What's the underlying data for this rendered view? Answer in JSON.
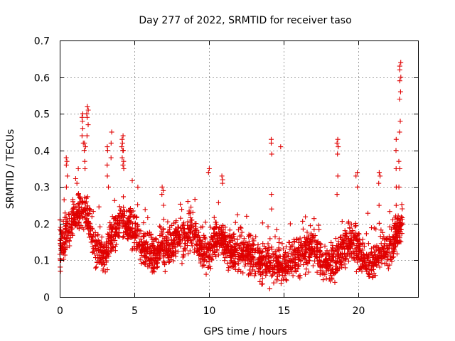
{
  "chart_data": {
    "type": "scatter",
    "title": "Day 277 of 2022, SRMTID for receiver taso",
    "xlabel": "GPS time / hours",
    "ylabel": "SRMTID / TECUs",
    "xlim": [
      0,
      24
    ],
    "ylim": [
      0,
      0.7
    ],
    "x_ticks": [
      0,
      5,
      10,
      15,
      20
    ],
    "x_tick_labels": [
      "0",
      "5",
      "10",
      "15",
      "20"
    ],
    "y_ticks": [
      0,
      0.1,
      0.2,
      0.3,
      0.4,
      0.5,
      0.6,
      0.7
    ],
    "y_tick_labels": [
      "0",
      "0.1",
      "0.2",
      "0.3",
      "0.4",
      "0.5",
      "0.6",
      "0.7"
    ],
    "grid": true,
    "marker": "+",
    "marker_color": "#e00000",
    "baseline": [
      [
        0.0,
        0.13
      ],
      [
        0.5,
        0.18
      ],
      [
        1.0,
        0.22
      ],
      [
        1.5,
        0.24
      ],
      [
        2.0,
        0.2
      ],
      [
        2.5,
        0.13
      ],
      [
        3.0,
        0.11
      ],
      [
        3.5,
        0.17
      ],
      [
        4.0,
        0.2
      ],
      [
        4.5,
        0.2
      ],
      [
        5.0,
        0.18
      ],
      [
        5.5,
        0.14
      ],
      [
        6.0,
        0.12
      ],
      [
        6.5,
        0.12
      ],
      [
        7.0,
        0.13
      ],
      [
        7.5,
        0.14
      ],
      [
        8.0,
        0.16
      ],
      [
        8.5,
        0.17
      ],
      [
        9.0,
        0.18
      ],
      [
        9.5,
        0.13
      ],
      [
        10.0,
        0.12
      ],
      [
        10.5,
        0.17
      ],
      [
        11.0,
        0.15
      ],
      [
        11.5,
        0.12
      ],
      [
        12.0,
        0.12
      ],
      [
        12.5,
        0.12
      ],
      [
        13.0,
        0.11
      ],
      [
        13.5,
        0.1
      ],
      [
        14.0,
        0.1
      ],
      [
        14.5,
        0.09
      ],
      [
        15.0,
        0.09
      ],
      [
        15.5,
        0.1
      ],
      [
        16.0,
        0.11
      ],
      [
        16.5,
        0.13
      ],
      [
        17.0,
        0.14
      ],
      [
        17.5,
        0.1
      ],
      [
        18.0,
        0.09
      ],
      [
        18.5,
        0.1
      ],
      [
        19.0,
        0.13
      ],
      [
        19.5,
        0.15
      ],
      [
        20.0,
        0.13
      ],
      [
        20.5,
        0.1
      ],
      [
        21.0,
        0.09
      ],
      [
        21.5,
        0.12
      ],
      [
        22.0,
        0.13
      ],
      [
        22.5,
        0.16
      ],
      [
        22.9,
        0.2
      ]
    ],
    "peaks": [
      {
        "x": 0.05,
        "values": [
          0.07,
          0.08,
          0.1,
          0.16,
          0.19,
          0.21
        ]
      },
      {
        "x": 0.5,
        "values": [
          0.3,
          0.33,
          0.36,
          0.37,
          0.38
        ]
      },
      {
        "x": 1.2,
        "values": [
          0.28,
          0.31,
          0.35
        ]
      },
      {
        "x": 1.55,
        "values": [
          0.42,
          0.44,
          0.46,
          0.48,
          0.49,
          0.5
        ]
      },
      {
        "x": 1.7,
        "values": [
          0.35,
          0.37,
          0.4,
          0.41,
          0.42
        ]
      },
      {
        "x": 1.85,
        "values": [
          0.44,
          0.47,
          0.49,
          0.5,
          0.51,
          0.52
        ]
      },
      {
        "x": 3.2,
        "values": [
          0.3,
          0.33,
          0.36,
          0.4,
          0.41
        ]
      },
      {
        "x": 3.45,
        "values": [
          0.38,
          0.42,
          0.45
        ]
      },
      {
        "x": 4.2,
        "values": [
          0.36,
          0.38,
          0.4,
          0.41,
          0.42,
          0.43,
          0.44
        ]
      },
      {
        "x": 4.3,
        "values": [
          0.35,
          0.37,
          0.4
        ]
      },
      {
        "x": 6.9,
        "values": [
          0.28,
          0.29,
          0.3
        ]
      },
      {
        "x": 10.0,
        "values": [
          0.34,
          0.35
        ]
      },
      {
        "x": 10.9,
        "values": [
          0.31,
          0.32,
          0.33
        ]
      },
      {
        "x": 14.2,
        "values": [
          0.24,
          0.28,
          0.39,
          0.42,
          0.43
        ]
      },
      {
        "x": 14.75,
        "values": [
          0.41
        ]
      },
      {
        "x": 18.6,
        "values": [
          0.28,
          0.33,
          0.39,
          0.41,
          0.42,
          0.43
        ]
      },
      {
        "x": 19.9,
        "values": [
          0.3,
          0.33,
          0.34
        ]
      },
      {
        "x": 21.4,
        "values": [
          0.31,
          0.33,
          0.34
        ]
      },
      {
        "x": 22.5,
        "values": [
          0.25,
          0.3,
          0.35,
          0.4,
          0.43
        ]
      },
      {
        "x": 22.75,
        "values": [
          0.3,
          0.35,
          0.37,
          0.45,
          0.48
        ]
      },
      {
        "x": 22.8,
        "values": [
          0.54,
          0.56,
          0.59,
          0.6,
          0.62,
          0.63,
          0.64
        ]
      }
    ],
    "density_per_hour": 110,
    "spread": 0.05,
    "x_end": 22.95
  }
}
